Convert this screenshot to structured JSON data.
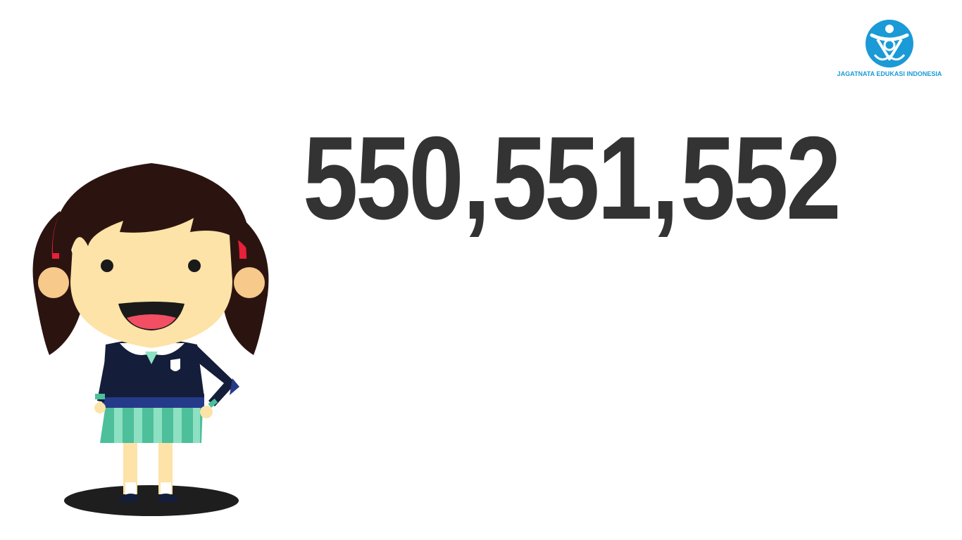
{
  "slide": {
    "numbers": [
      "550",
      "551",
      "552"
    ],
    "separator": ","
  },
  "logo": {
    "name": "JAGATNATA EDUKASI INDONESIA",
    "icon": "jagatnata-logo-icon",
    "color": "#1a9ad6"
  },
  "illustration": {
    "icon": "schoolgirl-character-icon"
  },
  "colors": {
    "number_text": "#333333",
    "background": "#ffffff",
    "hair": "#2b1410",
    "skin": "#fde3a7",
    "shirt": "#141d3a",
    "skirt": "#4dbf9b",
    "ribbon": "#e8203a"
  }
}
